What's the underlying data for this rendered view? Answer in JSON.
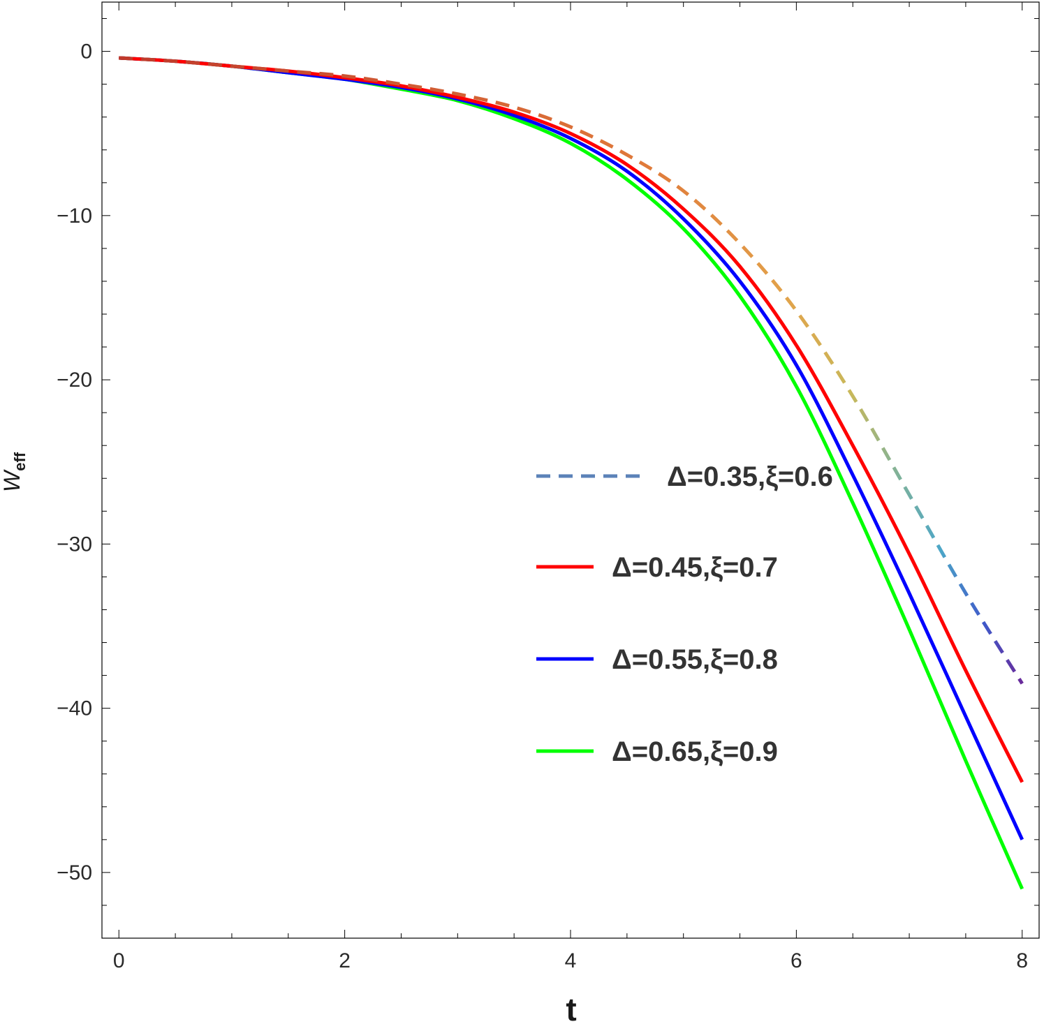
{
  "chart_data": {
    "type": "line",
    "xlabel": "t",
    "ylabel": "W",
    "ylabel_sub": "eff",
    "xlim": [
      -0.15,
      8.15
    ],
    "ylim": [
      -54,
      3
    ],
    "x_ticks": [
      0,
      2,
      4,
      6,
      8
    ],
    "y_ticks": [
      0,
      -10,
      -20,
      -30,
      -40,
      -50
    ],
    "x_minor_step": 0.5,
    "y_minor_step": 2,
    "grid": false,
    "legend_position": "center-right",
    "x": [
      0,
      0.5,
      1,
      1.5,
      2,
      2.5,
      3,
      3.5,
      4,
      4.5,
      5,
      5.5,
      6,
      6.5,
      7,
      7.5,
      8
    ],
    "series": [
      {
        "name": "Δ=0.35,ξ=0.6",
        "style": "dashed",
        "colors": [
          "#c0392b",
          "#e07a3a",
          "#e2a24a",
          "#c9b85a",
          "#7fb29a",
          "#4ca6c8",
          "#3f59c9",
          "#6a2a9a"
        ],
        "values": [
          -0.4,
          -0.6,
          -0.9,
          -1.2,
          -1.5,
          -2.0,
          -2.6,
          -3.4,
          -4.6,
          -6.3,
          -8.5,
          -11.7,
          -15.8,
          -21.0,
          -27.0,
          -33.0,
          -38.5
        ]
      },
      {
        "name": "Δ=0.45,ξ=0.7",
        "style": "solid",
        "color": "#ff0000",
        "values": [
          -0.4,
          -0.6,
          -0.9,
          -1.2,
          -1.6,
          -2.1,
          -2.8,
          -3.7,
          -5.0,
          -6.9,
          -9.6,
          -13.1,
          -17.9,
          -24.0,
          -30.6,
          -37.7,
          -44.5
        ]
      },
      {
        "name": "Δ=0.55,ξ=0.8",
        "style": "solid",
        "color": "#0000ff",
        "values": [
          -0.4,
          -0.6,
          -0.9,
          -1.3,
          -1.7,
          -2.2,
          -2.9,
          -3.9,
          -5.3,
          -7.3,
          -10.2,
          -14.0,
          -19.1,
          -25.8,
          -33.0,
          -40.5,
          -48.0
        ]
      },
      {
        "name": "Δ=0.65,ξ=0.9",
        "style": "solid",
        "color": "#00ff00",
        "values": [
          -0.4,
          -0.6,
          -0.9,
          -1.3,
          -1.7,
          -2.3,
          -3.0,
          -4.1,
          -5.6,
          -7.8,
          -10.8,
          -14.9,
          -20.4,
          -27.5,
          -35.2,
          -43.2,
          -51.0
        ]
      }
    ]
  }
}
